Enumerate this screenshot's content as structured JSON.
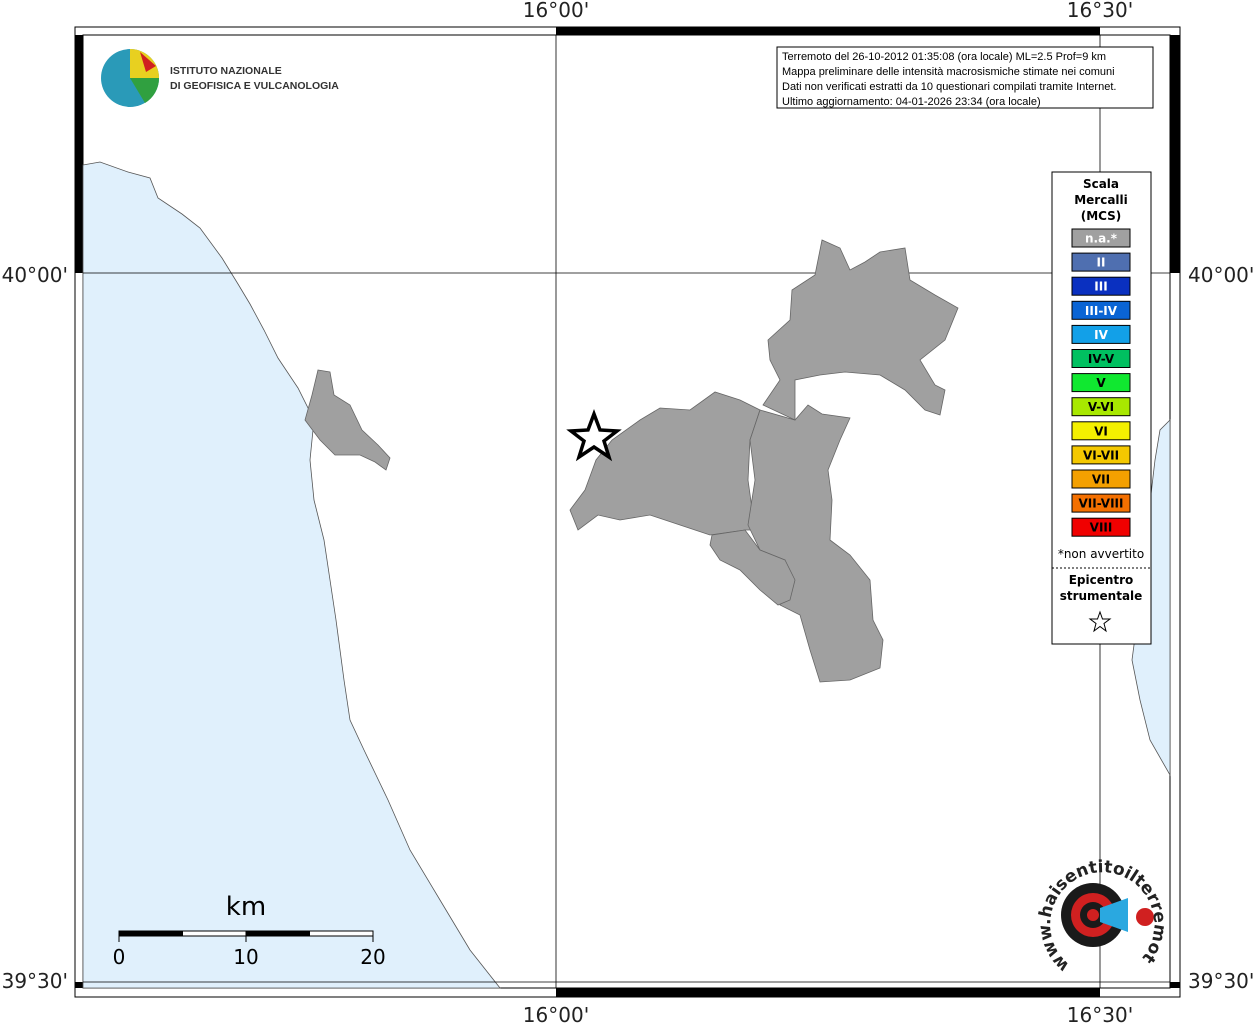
{
  "map": {
    "coords": {
      "lon1": "16°00'",
      "lon2": "16°30'",
      "lat1": "40°00'",
      "lat2": "39°30'"
    },
    "logo": {
      "line1": "ISTITUTO NAZIONALE",
      "line2": "DI GEOFISICA E VULCANOLOGIA"
    },
    "info": [
      "Terremoto del 26-10-2012 01:35:08 (ora locale) ML=2.5 Prof=9 km",
      "Mappa preliminare delle intensità macrosismiche stimate nei comuni",
      "Dati non verificati estratti da 10 questionari compilati tramite Internet.",
      "Ultimo aggiornamento: 04-01-2026 23:34 (ora locale)"
    ],
    "legend": {
      "title": [
        "Scala",
        "Mercalli",
        "(MCS)"
      ],
      "items": [
        {
          "label": "n.a.*",
          "color": "#a0a0a0"
        },
        {
          "label": "II",
          "color": "#4f6fb0"
        },
        {
          "label": "III",
          "color": "#0a30c0"
        },
        {
          "label": "III-IV",
          "color": "#0a64d4"
        },
        {
          "label": "IV",
          "color": "#12a0e8"
        },
        {
          "label": "IV-V",
          "color": "#00c060"
        },
        {
          "label": "V",
          "color": "#10e830"
        },
        {
          "label": "V-VI",
          "color": "#a8e800"
        },
        {
          "label": "VI",
          "color": "#f4f000"
        },
        {
          "label": "VI-VII",
          "color": "#f4c800"
        },
        {
          "label": "VII",
          "color": "#f4a000"
        },
        {
          "label": "VII-VIII",
          "color": "#f47000"
        },
        {
          "label": "VIII",
          "color": "#f00000"
        }
      ],
      "note": "*non avvertito",
      "epicenter": [
        "Epicentro",
        "strumentale"
      ]
    },
    "scale_bar": {
      "unit": "km",
      "ticks": [
        0,
        10,
        20
      ]
    },
    "watermark": "www.haisentitoilterremoto.it"
  }
}
